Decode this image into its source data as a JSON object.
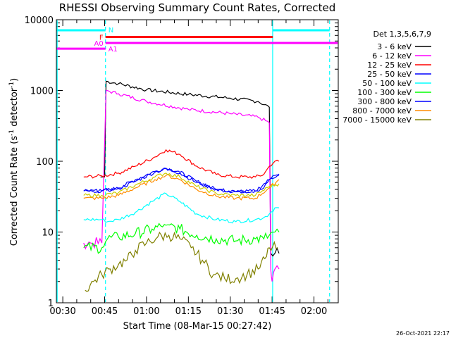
{
  "chart_data": {
    "type": "line",
    "title": "RHESSI Observing Summary Count Rates, Corrected",
    "xlabel": "Start Time (08-Mar-15 00:27:42)",
    "ylabel_parts": [
      "Corrected Count Rate (s",
      "-1",
      " detector",
      "-1",
      ")"
    ],
    "y_scale": "log",
    "ylim": [
      1,
      10000
    ],
    "xlim_minutes": [
      27.7,
      128.7
    ],
    "x_ticks": [
      {
        "label": "00:30",
        "min": 30
      },
      {
        "label": "00:45",
        "min": 45
      },
      {
        "label": "01:00",
        "min": 60
      },
      {
        "label": "01:15",
        "min": 75
      },
      {
        "label": "01:30",
        "min": 90
      },
      {
        "label": "01:45",
        "min": 105
      },
      {
        "label": "02:00",
        "min": 120
      }
    ],
    "y_ticks": [
      {
        "label": "1",
        "value": 1
      },
      {
        "label": "10",
        "value": 10
      },
      {
        "label": "100",
        "value": 100
      },
      {
        "label": "1000",
        "value": 1000
      },
      {
        "label": "10000",
        "value": 10000
      }
    ],
    "legend_header": "Det 1,3,5,6,7,9",
    "legend_position": "right",
    "series": [
      {
        "name": "3 - 6 keV",
        "color": "#000000",
        "x": [
          43.5,
          45,
          45.5,
          50,
          60,
          75,
          90,
          100,
          104,
          104.5,
          106,
          107.5
        ],
        "y": [
          60,
          60,
          1350,
          1250,
          1020,
          880,
          780,
          700,
          580,
          5,
          5,
          5
        ]
      },
      {
        "name": "6 - 12 keV",
        "color": "#ff00ff",
        "x": [
          37.5,
          40,
          44,
          45.5,
          50,
          60,
          75,
          90,
          100,
          104,
          104.5,
          105,
          106,
          107.5
        ],
        "y": [
          7,
          7,
          7,
          1000,
          900,
          700,
          540,
          470,
          420,
          350,
          3,
          2,
          3,
          3
        ]
      },
      {
        "name": "12 - 25 keV",
        "color": "#ff0000",
        "x": [
          37.5,
          44,
          50,
          56,
          63,
          67,
          72,
          78,
          85,
          92,
          99,
          102,
          104,
          106,
          107.5
        ],
        "y": [
          60,
          62,
          68,
          85,
          115,
          145,
          125,
          85,
          65,
          60,
          60,
          65,
          85,
          100,
          100
        ]
      },
      {
        "name": "25 - 50 keV",
        "color": "#0000ff",
        "x": [
          37.5,
          44,
          50,
          56,
          63,
          67,
          72,
          78,
          85,
          92,
          99,
          102,
          104,
          106,
          107.5
        ],
        "y": [
          38,
          38,
          42,
          55,
          72,
          80,
          70,
          52,
          40,
          37,
          38,
          42,
          55,
          63,
          63
        ]
      },
      {
        "name": "50 - 100 keV",
        "color": "#00ffff",
        "x": [
          37.5,
          44,
          46,
          50,
          56,
          62,
          67,
          72,
          78,
          85,
          92,
          99,
          102,
          104,
          106,
          107.5
        ],
        "y": [
          15,
          15,
          14,
          15,
          19,
          27,
          35,
          27,
          18,
          15,
          14,
          15,
          16,
          18,
          22,
          22
        ]
      },
      {
        "name": "100 - 300 keV",
        "color": "#00ff00",
        "x": [
          37.5,
          44,
          46,
          50,
          56,
          62,
          67,
          72,
          78,
          85,
          92,
          99,
          102,
          104,
          106,
          107.5
        ],
        "y": [
          6,
          6,
          8,
          8.5,
          9.5,
          11,
          12.5,
          11,
          9,
          8,
          7.5,
          8,
          8,
          9,
          10,
          10
        ]
      },
      {
        "name": "300 - 800 keV",
        "color": "#0000ff",
        "x": [
          37.5,
          44,
          50,
          56,
          63,
          67,
          72,
          78,
          85,
          92,
          99,
          104,
          107.5
        ],
        "y": [
          38,
          38,
          41,
          52,
          70,
          78,
          68,
          50,
          40,
          37,
          38,
          55,
          66
        ]
      },
      {
        "name": "800 - 7000 keV",
        "color": "#ff8c00",
        "x": [
          37.5,
          44,
          50,
          56,
          63,
          67,
          72,
          78,
          85,
          92,
          99,
          104,
          107.5
        ],
        "y": [
          30,
          30,
          33,
          42,
          55,
          63,
          55,
          40,
          32,
          30,
          30,
          42,
          55
        ]
      },
      {
        "name": "7000 - 15000 keV",
        "color": "#808000",
        "x": [
          38,
          41,
          44,
          47,
          50,
          53,
          56,
          60,
          64,
          68,
          72,
          76,
          80,
          84,
          88,
          92,
          96,
          100,
          103,
          104,
          107
        ],
        "y": [
          1.5,
          2,
          2.5,
          3,
          3.5,
          4,
          5.5,
          7,
          8.5,
          9,
          8,
          6,
          4,
          2.5,
          2.2,
          2.2,
          2.5,
          3,
          4.5,
          6,
          6
        ]
      },
      {
        "name": "",
        "color": "#cccc00",
        "x": [
          37.5,
          44,
          50,
          56,
          63,
          67,
          72,
          78,
          85,
          92,
          99,
          104,
          107.5
        ],
        "y": [
          33,
          33,
          36,
          46,
          60,
          68,
          60,
          44,
          35,
          33,
          33,
          44,
          48
        ]
      }
    ],
    "state_bars": [
      {
        "label": "N",
        "color": "#00ffff",
        "x0": 27.9,
        "x1": 45.3,
        "y": 7100
      },
      {
        "label": "",
        "color": "#00ffff",
        "x0": 105.2,
        "x1": 125.6,
        "y": 7100
      },
      {
        "label": "F",
        "color": "#ff0000",
        "x0": 45.3,
        "x1": 105.2,
        "y": 5700
      },
      {
        "label": "A0",
        "color": "#ff00ff",
        "x0": 45.3,
        "x1": 128.5,
        "y": 4700
      },
      {
        "label": "A1",
        "color": "#ff00ff",
        "x0": 27.9,
        "x1": 45.3,
        "y": 3900
      }
    ],
    "vertical_markers": [
      {
        "color": "#00ffff",
        "style": "solid",
        "min": 28
      },
      {
        "color": "#00ffff",
        "style": "dashed",
        "min": 45.3
      },
      {
        "color": "#00ffff",
        "style": "solid",
        "min": 105.2
      },
      {
        "color": "#00ffff",
        "style": "dashed",
        "min": 125.6
      }
    ]
  },
  "footer": {
    "timestamp": "26-Oct-2021 22:17"
  }
}
